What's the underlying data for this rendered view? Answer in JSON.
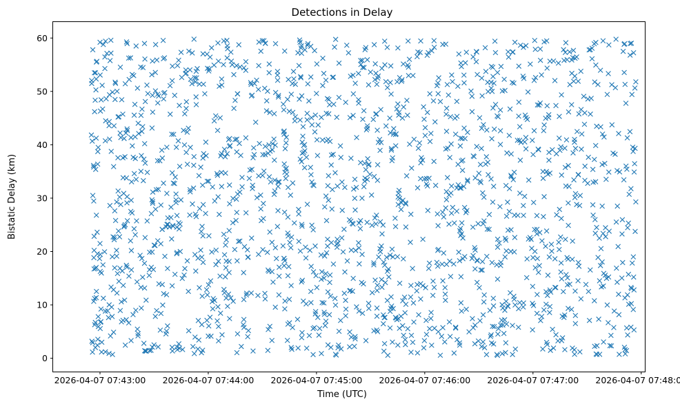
{
  "chart_data": {
    "type": "scatter",
    "title": "Detections in Delay",
    "xlabel": "Time (UTC)",
    "ylabel": "Bistatic Delay (km)",
    "marker": "x",
    "color": "#1f77b4",
    "grid": false,
    "legend": false,
    "xlim": [
      "2026-04-07 07:42:34",
      "2026-04-07 07:48:02"
    ],
    "ylim": [
      -2.5,
      63
    ],
    "x_ticks": [
      "2026-04-07 07:43:00",
      "2026-04-07 07:44:00",
      "2026-04-07 07:45:00",
      "2026-04-07 07:46:00",
      "2026-04-07 07:47:00",
      "2026-04-07 07:48:00"
    ],
    "y_ticks": [
      0,
      10,
      20,
      30,
      40,
      50,
      60
    ],
    "x_range": [
      "2026-04-07 07:42:55",
      "2026-04-07 07:47:57"
    ],
    "y_range": [
      0.5,
      59.8
    ],
    "point_count": 1800,
    "points": [
      [
        "2026-04-07 07:42:56",
        57.8
      ],
      [
        "2026-04-07 07:42:58",
        55.5
      ],
      [
        "2026-04-07 07:43:00",
        59.2
      ],
      [
        "2026-04-07 07:42:57",
        46.2
      ],
      [
        "2026-04-07 07:42:59",
        39.5
      ],
      [
        "2026-04-07 07:42:56",
        30.5
      ],
      [
        "2026-04-07 07:42:58",
        26.8
      ],
      [
        "2026-04-07 07:43:00",
        21.5
      ],
      [
        "2026-04-07 07:42:57",
        11.2
      ],
      [
        "2026-04-07 07:42:59",
        7.8
      ],
      [
        "2026-04-07 07:43:01",
        3.0
      ],
      [
        "2026-04-07 07:43:03",
        1.2
      ],
      [
        "2026-04-07 07:43:05",
        0.9
      ],
      [
        "2026-04-07 07:43:10",
        45.2
      ],
      [
        "2026-04-07 07:43:20",
        58.5
      ],
      [
        "2026-04-07 07:43:40",
        52.0
      ],
      [
        "2026-04-07 07:44:05",
        7.0
      ],
      [
        "2026-04-07 07:44:10",
        18.2
      ],
      [
        "2026-04-07 07:44:30",
        59.5
      ],
      [
        "2026-04-07 07:44:46",
        2.0
      ],
      [
        "2026-04-07 07:45:10",
        58.3
      ],
      [
        "2026-04-07 07:45:35",
        41.0
      ],
      [
        "2026-04-07 07:45:56",
        1.0
      ],
      [
        "2026-04-07 07:46:10",
        58.8
      ],
      [
        "2026-04-07 07:46:40",
        0.7
      ],
      [
        "2026-04-07 07:46:50",
        59.2
      ],
      [
        "2026-04-07 07:47:05",
        22.0
      ],
      [
        "2026-04-07 07:47:35",
        0.8
      ],
      [
        "2026-04-07 07:47:50",
        57.5
      ],
      [
        "2026-04-07 07:47:57",
        29.3
      ],
      [
        "2026-04-07 07:47:57",
        51.8
      ],
      [
        "2026-04-07 07:47:56",
        12.8
      ],
      [
        "2026-04-07 07:47:56",
        5.3
      ]
    ]
  }
}
